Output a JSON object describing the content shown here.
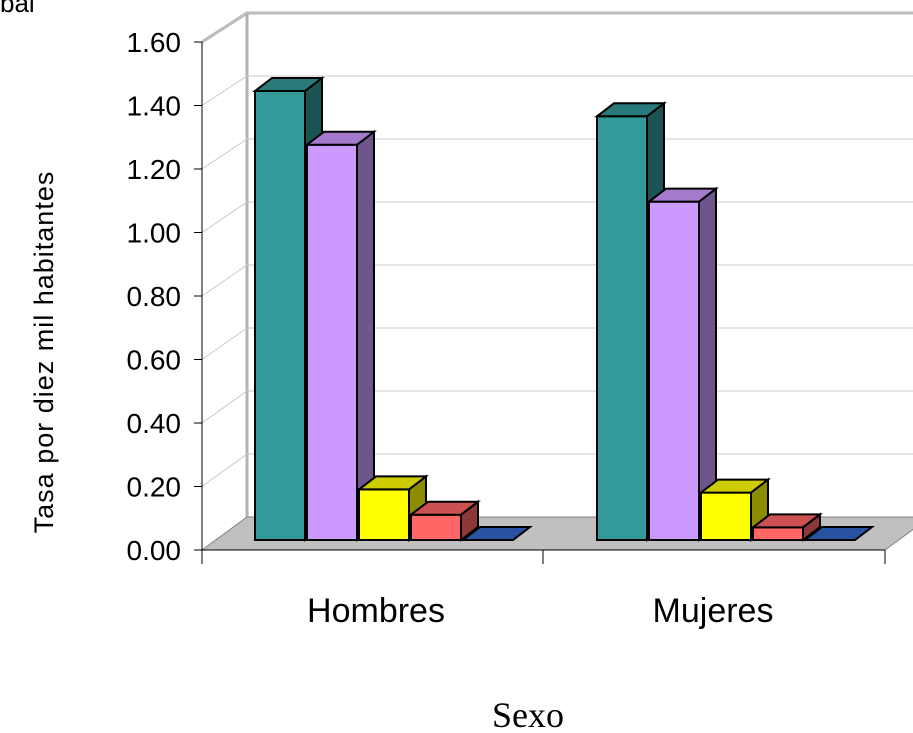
{
  "chart_data": {
    "type": "bar",
    "title": "",
    "corner_text": "bal",
    "xlabel": "Sexo",
    "ylabel": "Tasa por diez mil habitantes",
    "categories": [
      "Hombres",
      "Mujeres"
    ],
    "ylim": [
      0,
      1.6
    ],
    "yticks": [
      "0.00",
      "0.20",
      "0.40",
      "0.60",
      "0.80",
      "1.00",
      "1.20",
      "1.40",
      "1.60"
    ],
    "grid": true,
    "legend": "none",
    "series": [
      {
        "values": [
          1.42,
          1.34
        ],
        "color": "#339999"
      },
      {
        "values": [
          1.25,
          1.07
        ],
        "color": "#CC99FF"
      },
      {
        "values": [
          0.16,
          0.15
        ],
        "color": "#FFFF00"
      },
      {
        "values": [
          0.08,
          0.04
        ],
        "color": "#FF6666"
      },
      {
        "values": [
          0.0,
          0.0
        ],
        "color": "#3366CC"
      }
    ]
  }
}
